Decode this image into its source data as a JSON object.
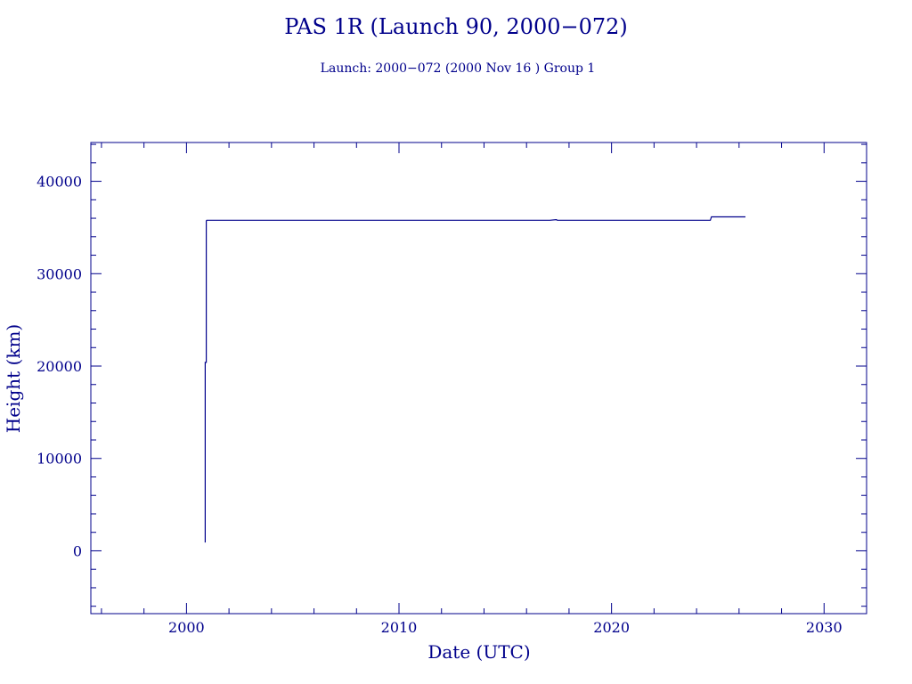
{
  "chart_data": {
    "type": "line",
    "title": "PAS 1R (Launch 90, 2000−072)",
    "subtitle": "Launch: 2000−072  (2000 Nov 16 )  Group 1",
    "xlabel": "Date (UTC)",
    "ylabel": "Height (km)",
    "xlim": [
      1995.5,
      2032.0
    ],
    "ylim": [
      -6800,
      44200
    ],
    "x_ticks": [
      2000,
      2010,
      2020,
      2030
    ],
    "y_ticks": [
      0,
      10000,
      20000,
      30000,
      40000
    ],
    "x_minor_step": 2,
    "y_minor_step": 2000,
    "grid": false,
    "color": "#00008b",
    "series": [
      {
        "x": [
          2000.88,
          2000.88,
          2000.93,
          2000.93,
          2000.95,
          2017.1,
          2017.4,
          2017.45,
          2024.65,
          2024.7,
          2026.3
        ],
        "y": [
          900,
          20400,
          20400,
          35700,
          35780,
          35780,
          35850,
          35780,
          35780,
          36150,
          36150
        ]
      }
    ]
  }
}
